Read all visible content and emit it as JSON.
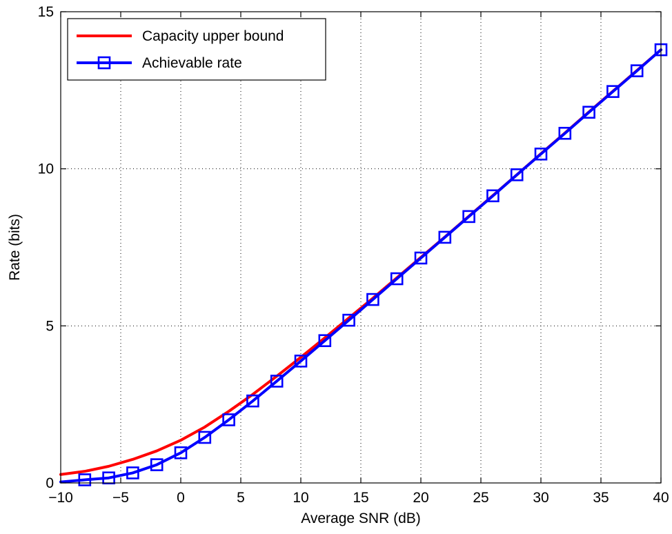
{
  "chart_data": {
    "type": "line",
    "title": "",
    "xlabel": "Average SNR (dB)",
    "ylabel": "Rate (bits)",
    "xlim": [
      -10,
      40
    ],
    "ylim": [
      0,
      15
    ],
    "x_ticks": [
      -10,
      -5,
      0,
      5,
      10,
      15,
      20,
      25,
      30,
      35,
      40
    ],
    "x_tick_labels": [
      "−10",
      "−5",
      "0",
      "5",
      "10",
      "15",
      "20",
      "25",
      "30",
      "35",
      "40"
    ],
    "y_ticks": [
      0,
      5,
      10,
      15
    ],
    "y_tick_labels": [
      "0",
      "5",
      "10",
      "15"
    ],
    "grid": true,
    "legend_position": "top-left",
    "series": [
      {
        "name": "Capacity upper bound",
        "color": "#ff0000",
        "marker": "none",
        "x": [
          -10,
          -8,
          -6,
          -4,
          -2,
          0,
          2,
          4,
          6,
          8,
          10,
          12,
          14,
          16,
          18,
          20,
          22,
          24,
          26,
          28,
          30,
          32,
          34,
          36,
          38,
          40
        ],
        "y": [
          0.27,
          0.37,
          0.53,
          0.75,
          1.02,
          1.36,
          1.78,
          2.28,
          2.82,
          3.4,
          4.0,
          4.62,
          5.25,
          5.88,
          6.53,
          7.18,
          7.83,
          8.49,
          9.15,
          9.81,
          10.48,
          11.14,
          11.81,
          12.47,
          13.13,
          13.79
        ]
      },
      {
        "name": "Achievable rate",
        "color": "#0000ff",
        "marker": "square",
        "x": [
          -10,
          -8,
          -6,
          -4,
          -2,
          0,
          2,
          4,
          6,
          8,
          10,
          12,
          14,
          16,
          18,
          20,
          22,
          24,
          26,
          28,
          30,
          32,
          34,
          36,
          38,
          40
        ],
        "y": [
          0.03,
          0.1,
          0.16,
          0.32,
          0.58,
          0.96,
          1.45,
          2.01,
          2.61,
          3.24,
          3.88,
          4.53,
          5.18,
          5.84,
          6.5,
          7.16,
          7.82,
          8.48,
          9.14,
          9.81,
          10.47,
          11.13,
          11.8,
          12.46,
          13.12,
          13.79
        ]
      }
    ]
  }
}
